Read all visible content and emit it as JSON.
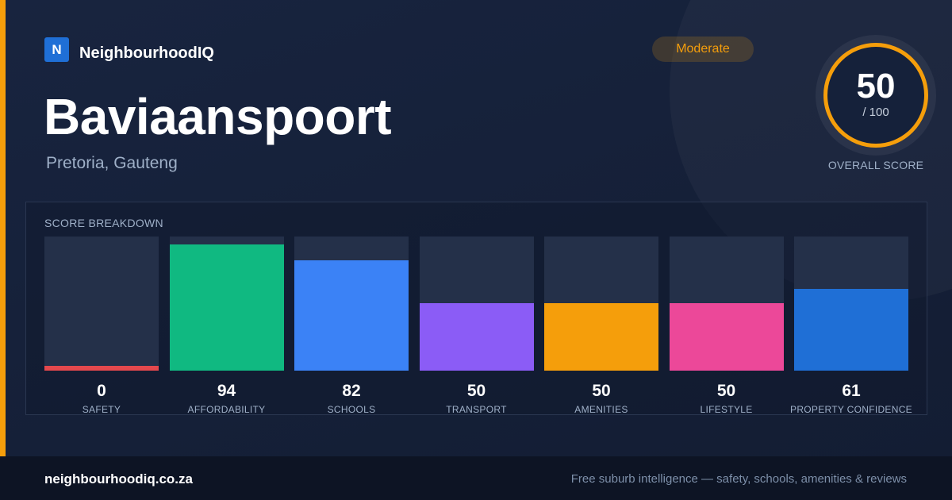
{
  "brand": {
    "logo_letter": "N",
    "name": "NeighbourhoodIQ"
  },
  "suburb": {
    "name": "Baviaanspoort",
    "location": "Pretoria, Gauteng"
  },
  "rating_badge": "Moderate",
  "overall": {
    "score": "50",
    "max": "/ 100",
    "label": "OVERALL SCORE",
    "fraction": 0.5
  },
  "colors": {
    "accent": "#f59e0b",
    "background": "#15213a"
  },
  "chart_data": {
    "type": "bar",
    "title": "SCORE BREAKDOWN",
    "ylim": [
      0,
      100
    ],
    "categories": [
      "SAFETY",
      "AFFORDABILITY",
      "SCHOOLS",
      "TRANSPORT",
      "AMENITIES",
      "LIFESTYLE",
      "PROPERTY CONFIDENCE"
    ],
    "values": [
      0,
      94,
      82,
      50,
      50,
      50,
      61
    ],
    "colors": [
      "#e5484d",
      "#10b981",
      "#3b82f6",
      "#8b5cf6",
      "#f59e0b",
      "#ec4899",
      "#1f6fd6"
    ]
  },
  "footer": {
    "url": "neighbourhoodiq.co.za",
    "tagline": "Free suburb intelligence — safety, schools, amenities & reviews"
  }
}
